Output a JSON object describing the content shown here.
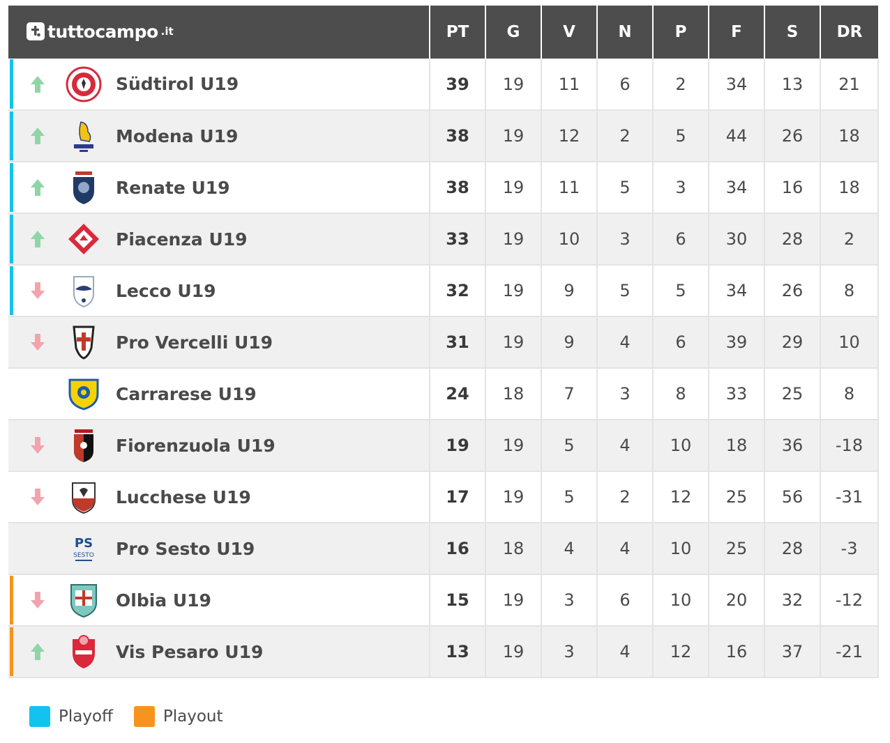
{
  "brand": {
    "name": "tuttocampo",
    "tld": ".it"
  },
  "colors": {
    "header_bg": "#4d4d4d",
    "playoff": "#12c3f0",
    "playout": "#f7931e",
    "trend_up": "#8fd6a6",
    "trend_down": "#f2a4ae"
  },
  "columns": [
    "PT",
    "G",
    "V",
    "N",
    "P",
    "F",
    "S",
    "DR"
  ],
  "rows": [
    {
      "team": "Südtirol U19",
      "zone": "playoff",
      "trend": "up",
      "crest": "sudtirol-crest-icon",
      "pt": "39",
      "g": "19",
      "v": "11",
      "n": "6",
      "p": "2",
      "f": "34",
      "s": "13",
      "dr": "21"
    },
    {
      "team": "Modena U19",
      "zone": "playoff",
      "trend": "up",
      "crest": "modena-crest-icon",
      "pt": "38",
      "g": "19",
      "v": "12",
      "n": "2",
      "p": "5",
      "f": "44",
      "s": "26",
      "dr": "18"
    },
    {
      "team": "Renate U19",
      "zone": "playoff",
      "trend": "up",
      "crest": "renate-crest-icon",
      "pt": "38",
      "g": "19",
      "v": "11",
      "n": "5",
      "p": "3",
      "f": "34",
      "s": "16",
      "dr": "18"
    },
    {
      "team": "Piacenza U19",
      "zone": "playoff",
      "trend": "up",
      "crest": "piacenza-crest-icon",
      "pt": "33",
      "g": "19",
      "v": "10",
      "n": "3",
      "p": "6",
      "f": "30",
      "s": "28",
      "dr": "2"
    },
    {
      "team": "Lecco U19",
      "zone": "playoff",
      "trend": "down",
      "crest": "lecco-crest-icon",
      "pt": "32",
      "g": "19",
      "v": "9",
      "n": "5",
      "p": "5",
      "f": "34",
      "s": "26",
      "dr": "8"
    },
    {
      "team": "Pro Vercelli U19",
      "zone": "",
      "trend": "down",
      "crest": "pro-vercelli-crest-icon",
      "pt": "31",
      "g": "19",
      "v": "9",
      "n": "4",
      "p": "6",
      "f": "39",
      "s": "29",
      "dr": "10"
    },
    {
      "team": "Carrarese U19",
      "zone": "",
      "trend": "",
      "crest": "carrarese-crest-icon",
      "pt": "24",
      "g": "18",
      "v": "7",
      "n": "3",
      "p": "8",
      "f": "33",
      "s": "25",
      "dr": "8"
    },
    {
      "team": "Fiorenzuola U19",
      "zone": "",
      "trend": "down",
      "crest": "fiorenzuola-crest-icon",
      "pt": "19",
      "g": "19",
      "v": "5",
      "n": "4",
      "p": "10",
      "f": "18",
      "s": "36",
      "dr": "-18"
    },
    {
      "team": "Lucchese U19",
      "zone": "",
      "trend": "down",
      "crest": "lucchese-crest-icon",
      "pt": "17",
      "g": "19",
      "v": "5",
      "n": "2",
      "p": "12",
      "f": "25",
      "s": "56",
      "dr": "-31"
    },
    {
      "team": "Pro Sesto U19",
      "zone": "",
      "trend": "",
      "crest": "pro-sesto-crest-icon",
      "pt": "16",
      "g": "18",
      "v": "4",
      "n": "4",
      "p": "10",
      "f": "25",
      "s": "28",
      "dr": "-3"
    },
    {
      "team": "Olbia U19",
      "zone": "playout",
      "trend": "down",
      "crest": "olbia-crest-icon",
      "pt": "15",
      "g": "19",
      "v": "3",
      "n": "6",
      "p": "10",
      "f": "20",
      "s": "32",
      "dr": "-12"
    },
    {
      "team": "Vis Pesaro U19",
      "zone": "playout",
      "trend": "up",
      "crest": "vis-pesaro-crest-icon",
      "pt": "13",
      "g": "19",
      "v": "3",
      "n": "4",
      "p": "12",
      "f": "16",
      "s": "37",
      "dr": "-21"
    }
  ],
  "legend": [
    {
      "label": "Playoff",
      "color": "#12c3f0"
    },
    {
      "label": "Playout",
      "color": "#f7931e"
    }
  ]
}
